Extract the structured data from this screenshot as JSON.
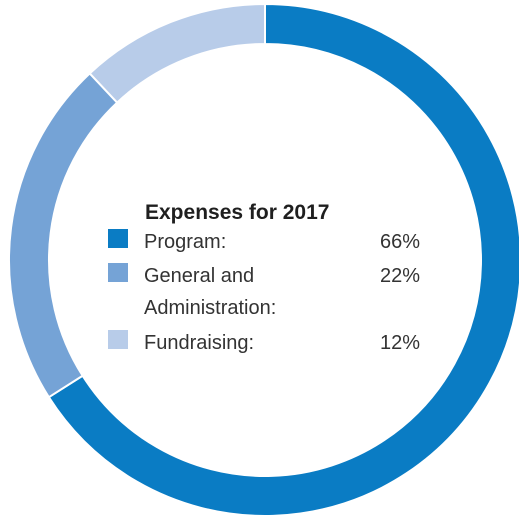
{
  "chart_data": {
    "type": "pie",
    "variant": "donut",
    "title": "Expenses for 2017",
    "categories": [
      "Program:",
      "General and Administration:",
      "Fundraising:"
    ],
    "values": [
      66,
      22,
      12
    ],
    "value_labels": [
      "66%",
      "22%",
      "12%"
    ],
    "legend": [
      {
        "line1": "Program:",
        "line2": "",
        "value": "66%",
        "color": "#0a7cc4"
      },
      {
        "line1": "General and",
        "line2": "Administration:",
        "value": "22%",
        "color": "#75a3d6"
      },
      {
        "line1": "Fundraising:",
        "line2": "",
        "value": "12%",
        "color": "#b8cce9"
      }
    ],
    "legend_placement": "center",
    "colors": [
      "#0a7cc4",
      "#75a3d6",
      "#b8cce9"
    ]
  }
}
